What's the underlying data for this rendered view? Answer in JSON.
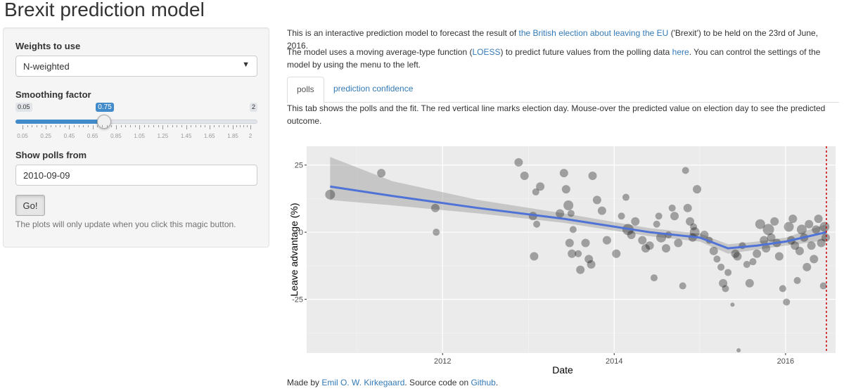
{
  "page": {
    "title": "Brexit prediction model"
  },
  "sidebar": {
    "weights": {
      "label": "Weights to use",
      "value": "N-weighted"
    },
    "smoothing": {
      "label": "Smoothing factor",
      "min_label": "0.05",
      "max_label": "2",
      "value": 0.75,
      "value_label": "0.75",
      "min": 0.05,
      "max": 2,
      "ticks": [
        "0.05",
        "0.25",
        "0.45",
        "0.65",
        "0.85",
        "1.05",
        "1.25",
        "1.45",
        "1.65",
        "1.85",
        "2"
      ]
    },
    "polls_from": {
      "label": "Show polls from",
      "value": "2010-09-09"
    },
    "go_label": "Go!",
    "help": "The plots will only update when you click this magic button."
  },
  "intro": {
    "p1_a": "This is an interactive prediction model to forecast the result of ",
    "p1_link": "the British election about leaving the EU",
    "p1_b": " ('Brexit') to be held on the 23rd of June, 2016.",
    "p2_a": "The model uses a moving average-type function (",
    "p2_link1": "LOESS",
    "p2_b": ") to predict future values from the polling data ",
    "p2_link2": "here",
    "p2_c": ". You can control the settings of the model by using the menu to the left."
  },
  "tabs": {
    "active": "polls",
    "other": "prediction confidence"
  },
  "tab_text": "This tab shows the polls and the fit. The red vertical line marks election day. Mouse-over the predicted value on election day to see the predicted outcome.",
  "chart_data": {
    "type": "scatter",
    "xlabel": "Date",
    "ylabel": "Leave advantage (%)",
    "x_ticks": [
      "2012",
      "2014",
      "2016"
    ],
    "y_ticks": [
      "25",
      "0",
      "-25"
    ],
    "xlim": [
      "2010-06-01",
      "2016-08-01"
    ],
    "ylim": [
      -45,
      32
    ],
    "grid": true,
    "vline": {
      "date": "2016-06-23",
      "color": "#cc0000",
      "style": "dashed"
    },
    "fit_color": "#4f72d6",
    "fit": {
      "x": [
        "2010-09-09",
        "2011-06-01",
        "2012-06-01",
        "2013-06-01",
        "2014-06-01",
        "2015-01-01",
        "2015-05-01",
        "2015-09-01",
        "2016-01-01",
        "2016-06-23"
      ],
      "y": [
        17,
        13.5,
        9,
        5,
        0,
        -2,
        -6,
        -5,
        -3.5,
        0
      ],
      "lower": [
        12,
        10,
        7,
        3.5,
        -1.5,
        -3.5,
        -8,
        -6.5,
        -5,
        -3
      ],
      "upper": [
        28,
        19,
        12,
        7,
        1.5,
        -0.5,
        -4.5,
        -3.5,
        -2,
        3
      ]
    },
    "points": [
      {
        "x": "2010-09-09",
        "y": 14,
        "s": 7
      },
      {
        "x": "2011-04-15",
        "y": 22,
        "s": 6
      },
      {
        "x": "2011-12-01",
        "y": 9,
        "s": 6
      },
      {
        "x": "2011-12-05",
        "y": 0,
        "s": 5
      },
      {
        "x": "2012-11-20",
        "y": 26,
        "s": 6
      },
      {
        "x": "2012-12-15",
        "y": 21,
        "s": 6
      },
      {
        "x": "2013-02-01",
        "y": 15,
        "s": 5
      },
      {
        "x": "2013-02-20",
        "y": 17,
        "s": 6
      },
      {
        "x": "2013-01-20",
        "y": 6,
        "s": 6
      },
      {
        "x": "2013-02-05",
        "y": 3,
        "s": 5
      },
      {
        "x": "2013-01-25",
        "y": -9,
        "s": 6
      },
      {
        "x": "2013-06-01",
        "y": 22,
        "s": 6
      },
      {
        "x": "2013-06-10",
        "y": 16,
        "s": 6
      },
      {
        "x": "2013-06-20",
        "y": 10,
        "s": 7
      },
      {
        "x": "2013-07-01",
        "y": 7,
        "s": 5
      },
      {
        "x": "2013-07-10",
        "y": 1,
        "s": 5
      },
      {
        "x": "2013-05-15",
        "y": 7,
        "s": 6
      },
      {
        "x": "2013-06-25",
        "y": -4,
        "s": 6
      },
      {
        "x": "2013-07-05",
        "y": -8,
        "s": 6
      },
      {
        "x": "2013-08-01",
        "y": -8,
        "s": 5
      },
      {
        "x": "2013-08-10",
        "y": -14,
        "s": 6
      },
      {
        "x": "2013-09-01",
        "y": -4,
        "s": 6
      },
      {
        "x": "2013-09-15",
        "y": -10,
        "s": 6
      },
      {
        "x": "2013-09-25",
        "y": -12,
        "s": 6
      },
      {
        "x": "2013-10-01",
        "y": 21,
        "s": 6
      },
      {
        "x": "2013-10-20",
        "y": 12,
        "s": 6
      },
      {
        "x": "2013-11-10",
        "y": 8,
        "s": 6
      },
      {
        "x": "2013-12-01",
        "y": -3,
        "s": 6
      },
      {
        "x": "2014-01-10",
        "y": -8,
        "s": 6
      },
      {
        "x": "2014-02-01",
        "y": 6,
        "s": 5
      },
      {
        "x": "2014-02-20",
        "y": 13,
        "s": 5
      },
      {
        "x": "2014-03-01",
        "y": 1,
        "s": 8
      },
      {
        "x": "2014-03-15",
        "y": -1,
        "s": 6
      },
      {
        "x": "2014-04-01",
        "y": 4,
        "s": 6
      },
      {
        "x": "2014-05-01",
        "y": -3,
        "s": 6
      },
      {
        "x": "2014-05-15",
        "y": -6,
        "s": 6
      },
      {
        "x": "2014-06-01",
        "y": -5,
        "s": 6
      },
      {
        "x": "2014-06-20",
        "y": -17,
        "s": 5
      },
      {
        "x": "2014-07-01",
        "y": 3,
        "s": 5
      },
      {
        "x": "2014-07-10",
        "y": 6,
        "s": 5
      },
      {
        "x": "2014-07-20",
        "y": -2,
        "s": 7
      },
      {
        "x": "2014-08-10",
        "y": -6,
        "s": 6
      },
      {
        "x": "2014-08-20",
        "y": -1,
        "s": 5
      },
      {
        "x": "2014-09-05",
        "y": 9,
        "s": 5
      },
      {
        "x": "2014-09-15",
        "y": 6,
        "s": 6
      },
      {
        "x": "2014-10-01",
        "y": -4,
        "s": 6
      },
      {
        "x": "2014-10-20",
        "y": -20,
        "s": 5
      },
      {
        "x": "2014-11-01",
        "y": 23,
        "s": 5
      },
      {
        "x": "2014-11-10",
        "y": 9,
        "s": 6
      },
      {
        "x": "2014-11-20",
        "y": 4,
        "s": 6
      },
      {
        "x": "2014-12-01",
        "y": -2,
        "s": 6
      },
      {
        "x": "2014-12-05",
        "y": 2,
        "s": 5
      },
      {
        "x": "2014-12-20",
        "y": 16,
        "s": 6
      },
      {
        "x": "2014-12-10",
        "y": 0,
        "s": 7
      },
      {
        "x": "2015-01-20",
        "y": -1,
        "s": 6
      },
      {
        "x": "2015-02-10",
        "y": -3,
        "s": 5
      },
      {
        "x": "2015-03-01",
        "y": -7,
        "s": 6
      },
      {
        "x": "2015-03-15",
        "y": -10,
        "s": 5
      },
      {
        "x": "2015-04-01",
        "y": -13,
        "s": 5
      },
      {
        "x": "2015-04-10",
        "y": -19,
        "s": 6
      },
      {
        "x": "2015-04-20",
        "y": -21,
        "s": 5
      },
      {
        "x": "2015-05-01",
        "y": -15,
        "s": 5
      },
      {
        "x": "2015-05-20",
        "y": -27,
        "s": 3
      },
      {
        "x": "2015-06-01",
        "y": -8,
        "s": 6
      },
      {
        "x": "2015-06-10",
        "y": -9,
        "s": 6
      },
      {
        "x": "2015-06-15",
        "y": -44,
        "s": 3
      },
      {
        "x": "2015-07-01",
        "y": -5,
        "s": 5
      },
      {
        "x": "2015-07-20",
        "y": -12,
        "s": 5
      },
      {
        "x": "2015-08-01",
        "y": -19,
        "s": 6
      },
      {
        "x": "2015-08-15",
        "y": -11,
        "s": 5
      },
      {
        "x": "2015-09-01",
        "y": -8,
        "s": 6
      },
      {
        "x": "2015-09-15",
        "y": 3,
        "s": 7
      },
      {
        "x": "2015-10-01",
        "y": -3,
        "s": 6
      },
      {
        "x": "2015-10-10",
        "y": -6,
        "s": 6
      },
      {
        "x": "2015-10-20",
        "y": 1,
        "s": 8
      },
      {
        "x": "2015-11-01",
        "y": -2,
        "s": 6
      },
      {
        "x": "2015-11-15",
        "y": 4,
        "s": 6
      },
      {
        "x": "2015-11-25",
        "y": -4,
        "s": 6
      },
      {
        "x": "2015-12-05",
        "y": -9,
        "s": 6
      },
      {
        "x": "2015-12-20",
        "y": -21,
        "s": 5
      },
      {
        "x": "2016-01-05",
        "y": -26,
        "s": 5
      },
      {
        "x": "2016-01-15",
        "y": 2,
        "s": 7
      },
      {
        "x": "2016-01-25",
        "y": -3,
        "s": 6
      },
      {
        "x": "2016-02-01",
        "y": 5,
        "s": 6
      },
      {
        "x": "2016-02-10",
        "y": -5,
        "s": 6
      },
      {
        "x": "2016-02-20",
        "y": -18,
        "s": 5
      },
      {
        "x": "2016-03-01",
        "y": -7,
        "s": 6
      },
      {
        "x": "2016-03-10",
        "y": 1,
        "s": 7
      },
      {
        "x": "2016-03-20",
        "y": -2,
        "s": 6
      },
      {
        "x": "2016-04-01",
        "y": -13,
        "s": 6
      },
      {
        "x": "2016-04-10",
        "y": 3,
        "s": 6
      },
      {
        "x": "2016-04-20",
        "y": -5,
        "s": 6
      },
      {
        "x": "2016-05-01",
        "y": -10,
        "s": 6
      },
      {
        "x": "2016-05-10",
        "y": 1,
        "s": 6
      },
      {
        "x": "2016-05-20",
        "y": 5,
        "s": 6
      },
      {
        "x": "2016-06-01",
        "y": -4,
        "s": 6
      },
      {
        "x": "2016-06-10",
        "y": -20,
        "s": 5
      },
      {
        "x": "2016-06-15",
        "y": 2,
        "s": 7
      },
      {
        "x": "2016-06-20",
        "y": -2,
        "s": 6
      }
    ]
  },
  "footer": {
    "a": "Made by ",
    "author": "Emil O. W. Kirkegaard",
    "b": ". Source code on ",
    "github": "Github",
    "c": "."
  }
}
